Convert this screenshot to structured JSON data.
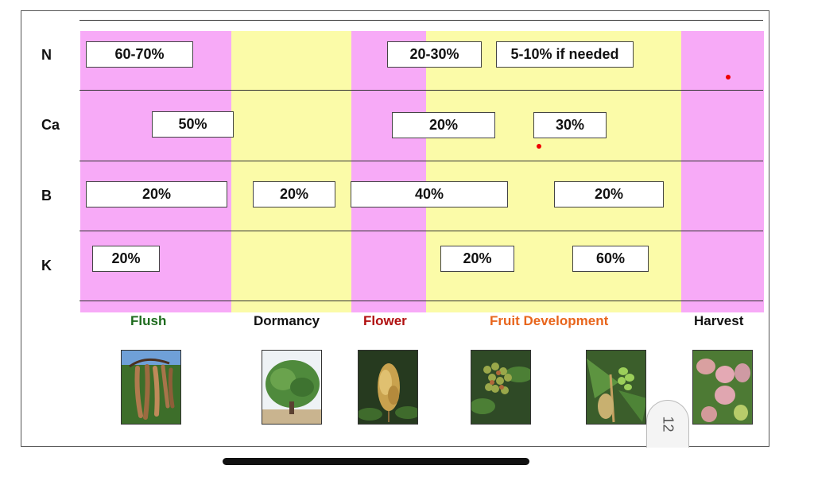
{
  "rows": [
    {
      "label": "N"
    },
    {
      "label": "Ca"
    },
    {
      "label": "B"
    },
    {
      "label": "K"
    }
  ],
  "boxes": {
    "n1": "60-70%",
    "n2": "20-30%",
    "n3": "5-10% if needed",
    "ca1": "50%",
    "ca2": "20%",
    "ca3": "30%",
    "b1": "20%",
    "b2": "20%",
    "b3": "40%",
    "b4": "20%",
    "k1": "20%",
    "k2": "20%",
    "k3": "60%"
  },
  "stages": [
    {
      "label": "Flush",
      "color": "#1e6b1e"
    },
    {
      "label": "Dormancy",
      "color": "#111111"
    },
    {
      "label": "Flower",
      "color": "#b01010"
    },
    {
      "label": "Fruit Development",
      "color": "#e8651c"
    },
    {
      "label": "Harvest",
      "color": "#111111"
    }
  ],
  "colors": {
    "pink": "#f7aaf7",
    "yellow": "#fbfba8"
  },
  "page_number": "12",
  "photos": [
    "pods-photo",
    "tree-photo",
    "flower-photo",
    "fruitlets-photo",
    "young-fruit-photo",
    "mango-photo"
  ]
}
